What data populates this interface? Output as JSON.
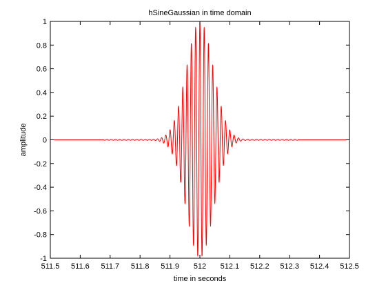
{
  "chart_data": {
    "type": "line",
    "title": "hSineGaussian in time domain",
    "xlabel": "time in seconds",
    "ylabel": "amplitude",
    "xlim": [
      511.5,
      512.5
    ],
    "ylim": [
      -1,
      1
    ],
    "xticks": [
      511.5,
      511.6,
      511.7,
      511.8,
      511.9,
      512,
      512.1,
      512.2,
      512.3,
      512.4,
      512.5
    ],
    "yticks": [
      -1,
      -0.8,
      -0.6,
      -0.4,
      -0.2,
      0,
      0.2,
      0.4,
      0.6,
      0.8,
      1
    ],
    "xtick_labels": [
      "511.5",
      "511.6",
      "511.7",
      "511.8",
      "511.9",
      "512",
      "512.1",
      "512.2",
      "512.3",
      "512.4",
      "512.5"
    ],
    "ytick_labels": [
      "-1",
      "-0.8",
      "-0.6",
      "-0.4",
      "-0.2",
      "0",
      "0.2",
      "0.4",
      "0.6",
      "0.8",
      "1"
    ],
    "grid": false,
    "series": [
      {
        "color": "#ff0000",
        "signal": {
          "kind": "sine-gaussian",
          "center": 512.0,
          "frequency": 70,
          "amplitude": 1.0,
          "gaussian_sigma": 0.045,
          "baseline_ripple_amplitude": 0.004,
          "baseline_ripple_range": [
            511.68,
            512.33
          ],
          "samples": 1601
        }
      }
    ]
  }
}
